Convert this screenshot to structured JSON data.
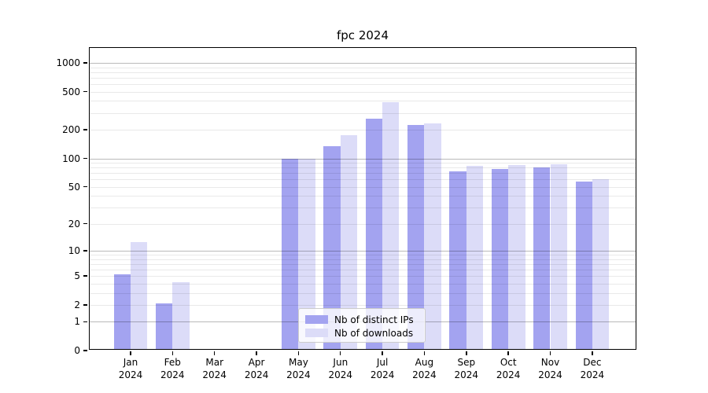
{
  "figure": {
    "title": "fpc 2024"
  },
  "chart_data": {
    "type": "bar",
    "title": "fpc 2024",
    "x_months": [
      "Jan",
      "Feb",
      "Mar",
      "Apr",
      "May",
      "Jun",
      "Jul",
      "Aug",
      "Sep",
      "Oct",
      "Nov",
      "Dec"
    ],
    "x_year": "2024",
    "categories": [
      "Jan 2024",
      "Feb 2024",
      "Mar 2024",
      "Apr 2024",
      "May 2024",
      "Jun 2024",
      "Jul 2024",
      "Aug 2024",
      "Sep 2024",
      "Oct 2024",
      "Nov 2024",
      "Dec 2024"
    ],
    "series": [
      {
        "name": "Nb of distinct IPs",
        "color": "#a3a3f0",
        "values": [
          5,
          2,
          0,
          0,
          95,
          130,
          250,
          215,
          70,
          75,
          77,
          55
        ]
      },
      {
        "name": "Nb of downloads",
        "color": "#dcdcf8",
        "values": [
          12,
          4,
          0,
          0,
          95,
          170,
          375,
          225,
          80,
          82,
          84,
          58
        ]
      }
    ],
    "yscale": "log1p",
    "ylabel": "",
    "xlabel": "",
    "yticks": [
      0,
      1,
      2,
      5,
      10,
      20,
      50,
      100,
      200,
      500,
      1000
    ],
    "ygrid_major": [
      1,
      10,
      100,
      1000
    ],
    "ygrid_minor": [
      2,
      3,
      4,
      5,
      6,
      7,
      8,
      9,
      20,
      30,
      40,
      50,
      60,
      70,
      80,
      90,
      200,
      300,
      400,
      500,
      600,
      700,
      800,
      900
    ],
    "ylim": [
      0,
      1430
    ],
    "grid": true,
    "legend": {
      "position": "lower center"
    }
  },
  "colors": {
    "background": "#ffffff",
    "bar_distinct_ips": "#a3a3f0",
    "bar_downloads": "#dcdcf8",
    "axis": "#000000",
    "grid_major": "rgba(0,0,0,0.27)",
    "grid_minor": "rgba(0,0,0,0.085)"
  }
}
